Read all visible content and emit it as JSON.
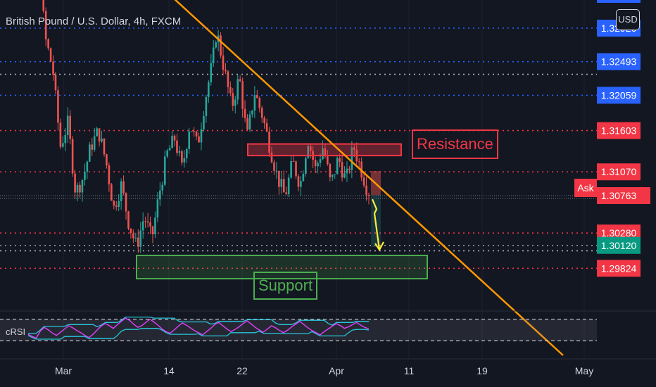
{
  "header": {
    "title": "British Pound / U.S. Dollar, 4h, FXCM"
  },
  "currency_button": {
    "label": "USD"
  },
  "ask_tag": {
    "label": "Ask"
  },
  "annotations": {
    "resistance": {
      "label": "Resistance"
    },
    "support": {
      "label": "Support"
    }
  },
  "indicator": {
    "label": "cRSI"
  },
  "colors": {
    "background": "#131722",
    "up": "#26a69a",
    "down": "#ef5350",
    "trendline": "#ff9800",
    "blue_level": "#2962ff",
    "red_level": "#f23645",
    "support_zone": "#4caf50",
    "forecast_arrow": "#ffeb3b",
    "crsi_line": "#e040fb",
    "crsi_band": "#26c6da"
  },
  "chart_data": {
    "type": "candlestick",
    "title": "British Pound / U.S. Dollar, 4h, FXCM",
    "x_ticks": [
      "Mar",
      "14",
      "22",
      "Apr",
      "11",
      "19",
      "May"
    ],
    "y_visible_range": [
      1.2942,
      1.34
    ],
    "price_labels": [
      {
        "value": "1.32926",
        "price": 1.32926,
        "style": "blue"
      },
      {
        "value": "1.32493",
        "price": 1.32493,
        "style": "blue"
      },
      {
        "value": "1.32059",
        "price": 1.32059,
        "style": "blue"
      },
      {
        "value": "1.31603",
        "price": 1.31603,
        "style": "red"
      },
      {
        "value": "1.31070",
        "price": 1.3107,
        "style": "red"
      },
      {
        "value": "1.30763",
        "price": 1.30763,
        "style": "red",
        "current": true
      },
      {
        "value": "1.30280",
        "price": 1.3028,
        "style": "red"
      },
      {
        "value": "1.30120",
        "price": 1.3012,
        "style": "green"
      },
      {
        "value": "1.29824",
        "price": 1.29824,
        "style": "red"
      }
    ],
    "extra_levels": [
      {
        "price": 1.33418,
        "style": "blue"
      },
      {
        "price": 1.3233,
        "style": "white"
      },
      {
        "price": 1.3005,
        "style": "white"
      }
    ],
    "price_path": [
      [
        0,
        1.337
      ],
      [
        3,
        1.342
      ],
      [
        6,
        1.339
      ],
      [
        8,
        1.34
      ],
      [
        10,
        1.328
      ],
      [
        12,
        1.324
      ],
      [
        14,
        1.314
      ],
      [
        16,
        1.317
      ],
      [
        18,
        1.308
      ],
      [
        20,
        1.31
      ],
      [
        22,
        1.314
      ],
      [
        24,
        1.316
      ],
      [
        26,
        1.312
      ],
      [
        28,
        1.306
      ],
      [
        30,
        1.309
      ],
      [
        32,
        1.304
      ],
      [
        34,
        1.301
      ],
      [
        36,
        1.305
      ],
      [
        38,
        1.302
      ],
      [
        40,
        1.308
      ],
      [
        42,
        1.313
      ],
      [
        44,
        1.315
      ],
      [
        46,
        1.311
      ],
      [
        48,
        1.317
      ],
      [
        50,
        1.314
      ],
      [
        52,
        1.32
      ],
      [
        54,
        1.325
      ],
      [
        55,
        1.329
      ],
      [
        57,
        1.324
      ],
      [
        59,
        1.319
      ],
      [
        61,
        1.323
      ],
      [
        63,
        1.315
      ],
      [
        65,
        1.321
      ],
      [
        67,
        1.318
      ],
      [
        69,
        1.314
      ],
      [
        71,
        1.31
      ],
      [
        73,
        1.3075
      ],
      [
        75,
        1.312
      ],
      [
        77,
        1.309
      ],
      [
        79,
        1.315
      ],
      [
        81,
        1.311
      ],
      [
        83,
        1.314
      ],
      [
        85,
        1.309
      ],
      [
        87,
        1.3125
      ],
      [
        89,
        1.3095
      ],
      [
        91,
        1.314
      ],
      [
        93,
        1.311
      ],
      [
        95,
        1.3078
      ]
    ],
    "trendline": {
      "start": [
        140,
        1.342
      ],
      "end": [
        800,
        1.287
      ]
    },
    "resistance_zone": {
      "x_range": [
        352,
        570
      ],
      "price_range": [
        1.3128,
        1.3143
      ]
    },
    "support_zone": {
      "x_range": [
        194,
        607
      ],
      "price_range": [
        1.2969,
        1.2999
      ]
    },
    "forecast": {
      "from_price": 1.3077,
      "to_price": 1.301
    },
    "crsi": {
      "label": "cRSI",
      "bands": [
        70,
        30
      ],
      "values": [
        42,
        38,
        35,
        48,
        55,
        50,
        44,
        40,
        46,
        52,
        58,
        54,
        49,
        45,
        40,
        36,
        42,
        50,
        57,
        62,
        58,
        53,
        60,
        66,
        72,
        68,
        61,
        55,
        58,
        64,
        70,
        65,
        59,
        52,
        47,
        44,
        50,
        57,
        63,
        59,
        54,
        49,
        45,
        41,
        47,
        53,
        60,
        64,
        58,
        52,
        47,
        51,
        56,
        62,
        67,
        61,
        55,
        50,
        46,
        52,
        58,
        54,
        49,
        45,
        50,
        56,
        61,
        66,
        60,
        54,
        49,
        45,
        41,
        47,
        52,
        57,
        62,
        58,
        53,
        56,
        60,
        64,
        59,
        55,
        52
      ]
    }
  }
}
